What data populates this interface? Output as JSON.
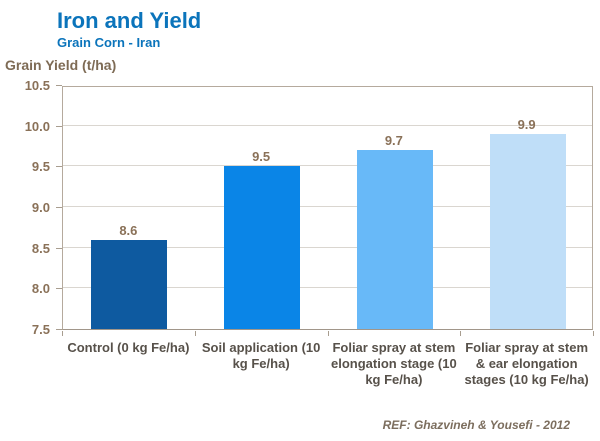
{
  "header": {
    "title": "Iron and Yield",
    "subtitle": "Grain Corn - Iran"
  },
  "footer": "REF: Ghazvineh & Yousefi - 2012",
  "colors": {
    "title_blue": "#0b74bb",
    "axis_text_brown": "#8a7158",
    "category_text": "#57514a",
    "gridline": "#dad6d0",
    "plot_border": "#b5aa9d",
    "footer_text": "#7c6e5e"
  },
  "chart_data": {
    "type": "bar",
    "title": "Iron and Yield",
    "subtitle": "Grain Corn - Iran",
    "ylabel": "Grain Yield (t/ha)",
    "xlabel": "",
    "categories": [
      "Control (0 kg Fe/ha)",
      "Soil application (10 kg Fe/ha)",
      "Foliar spray at stem elongation stage (10 kg Fe/ha)",
      "Foliar spray at stem & ear elongation stages (10 kg Fe/ha)"
    ],
    "values": [
      8.6,
      9.5,
      9.7,
      9.9
    ],
    "data_labels": [
      "8.6",
      "9.5",
      "9.7",
      "9.9"
    ],
    "bar_colors": [
      "#0e5aa0",
      "#0a85e7",
      "#68b9f8",
      "#bfdef8"
    ],
    "ylim": [
      7.5,
      10.5
    ],
    "ytick_step": 0.5,
    "grid": true,
    "legend": "none",
    "annotation": "REF: Ghazvineh & Yousefi - 2012"
  }
}
